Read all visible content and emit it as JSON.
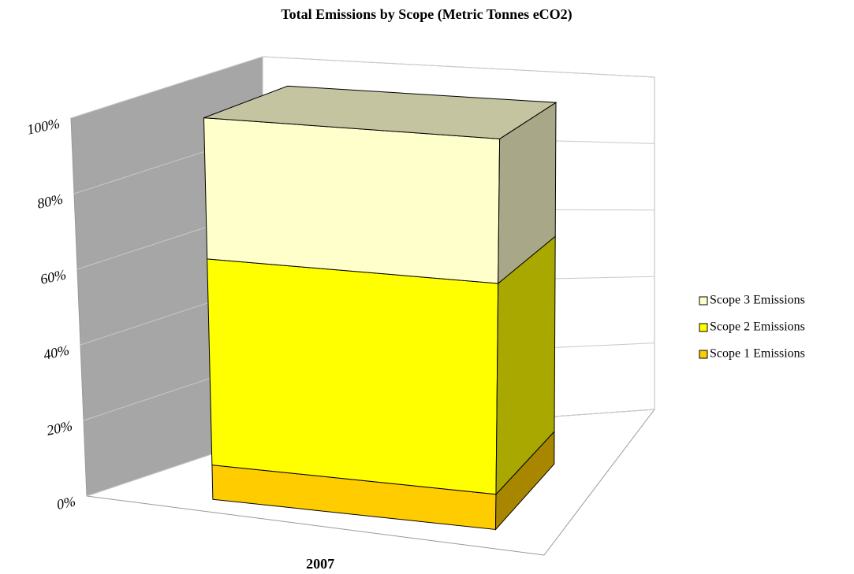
{
  "chart_data": {
    "type": "bar3d_stacked",
    "title": "Total Emissions by Scope (Metric Tonnes eCO2)",
    "categories": [
      "2007"
    ],
    "series": [
      {
        "name": "Scope 1 Emissions",
        "color": "#ffcc00",
        "values": [
          9
        ]
      },
      {
        "name": "Scope 2 Emissions",
        "color": "#ffff00",
        "values": [
          54
        ]
      },
      {
        "name": "Scope 3 Emissions",
        "color": "#ffffcc",
        "values": [
          37
        ]
      }
    ],
    "ylim": [
      0,
      100
    ],
    "yticks": [
      {
        "value": 0,
        "label": "0%"
      },
      {
        "value": 20,
        "label": "20%"
      },
      {
        "value": 40,
        "label": "40%"
      },
      {
        "value": 60,
        "label": "60%"
      },
      {
        "value": 80,
        "label": "80%"
      },
      {
        "value": 100,
        "label": "100%"
      }
    ],
    "grid": true,
    "legend": "right"
  }
}
